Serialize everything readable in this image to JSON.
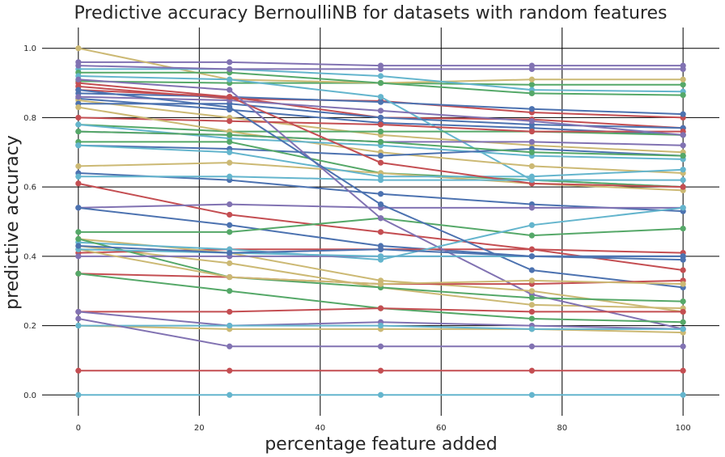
{
  "chart_data": {
    "type": "line",
    "title": "Predictive accuracy BernoulliNB for datasets with random features",
    "xlabel": "percentage feature added",
    "ylabel": "predictive accuracy",
    "x": [
      0,
      25,
      50,
      75,
      100
    ],
    "xlim": [
      -6,
      106
    ],
    "ylim": [
      -0.06,
      1.06
    ],
    "xticks": [
      "0",
      "20",
      "40",
      "60",
      "80",
      "100"
    ],
    "yticks": [
      "0.0",
      "0.2",
      "0.4",
      "0.6",
      "0.8",
      "1.0"
    ],
    "grid": true,
    "legend": "none",
    "colors": {
      "blue": "#4c72b0",
      "green": "#55a868",
      "red": "#c44e52",
      "purple": "#8172b2",
      "yellow": "#ccb974",
      "cyan": "#64b5cd"
    },
    "series": [
      {
        "color": "blue",
        "values": [
          0.855,
          0.823,
          0.785,
          0.77,
          0.75
        ]
      },
      {
        "color": "green",
        "values": [
          0.905,
          0.9,
          0.9,
          0.895,
          0.895
        ]
      },
      {
        "color": "red",
        "values": [
          0.89,
          0.855,
          0.848,
          0.815,
          0.8
        ]
      },
      {
        "color": "purple",
        "values": [
          0.96,
          0.96,
          0.95,
          0.95,
          0.95
        ]
      },
      {
        "color": "yellow",
        "values": [
          1.0,
          0.91,
          0.9,
          0.91,
          0.91
        ]
      },
      {
        "color": "cyan",
        "values": [
          0.94,
          0.94,
          0.92,
          0.88,
          0.875
        ]
      },
      {
        "color": "blue",
        "values": [
          0.87,
          0.86,
          0.845,
          0.825,
          0.81
        ]
      },
      {
        "color": "green",
        "values": [
          0.93,
          0.93,
          0.9,
          0.87,
          0.865
        ]
      },
      {
        "color": "red",
        "values": [
          0.9,
          0.86,
          0.8,
          0.795,
          0.77
        ]
      },
      {
        "color": "purple",
        "values": [
          0.95,
          0.94,
          0.94,
          0.94,
          0.94
        ]
      },
      {
        "color": "yellow",
        "values": [
          0.85,
          0.8,
          0.75,
          0.72,
          0.7
        ]
      },
      {
        "color": "cyan",
        "values": [
          0.92,
          0.91,
          0.86,
          0.62,
          0.6
        ]
      },
      {
        "color": "blue",
        "values": [
          0.84,
          0.84,
          0.8,
          0.78,
          0.77
        ]
      },
      {
        "color": "green",
        "values": [
          0.78,
          0.76,
          0.76,
          0.76,
          0.75
        ]
      },
      {
        "color": "red",
        "values": [
          0.8,
          0.79,
          0.78,
          0.76,
          0.76
        ]
      },
      {
        "color": "purple",
        "values": [
          0.86,
          0.85,
          0.82,
          0.79,
          0.75
        ]
      },
      {
        "color": "yellow",
        "values": [
          0.83,
          0.76,
          0.7,
          0.66,
          0.64
        ]
      },
      {
        "color": "cyan",
        "values": [
          0.78,
          0.74,
          0.72,
          0.69,
          0.68
        ]
      },
      {
        "color": "blue",
        "values": [
          0.72,
          0.71,
          0.69,
          0.71,
          0.69
        ]
      },
      {
        "color": "green",
        "values": [
          0.73,
          0.73,
          0.64,
          0.62,
          0.6
        ]
      },
      {
        "color": "red",
        "values": [
          0.61,
          0.52,
          0.47,
          0.42,
          0.36
        ]
      },
      {
        "color": "purple",
        "values": [
          0.76,
          0.75,
          0.73,
          0.73,
          0.72
        ]
      },
      {
        "color": "yellow",
        "values": [
          0.66,
          0.67,
          0.64,
          0.61,
          0.59
        ]
      },
      {
        "color": "cyan",
        "values": [
          0.72,
          0.7,
          0.63,
          0.63,
          0.65
        ]
      },
      {
        "color": "blue",
        "values": [
          0.64,
          0.62,
          0.58,
          0.55,
          0.53
        ]
      },
      {
        "color": "green",
        "values": [
          0.76,
          0.75,
          0.73,
          0.7,
          0.69
        ]
      },
      {
        "color": "red",
        "values": [
          0.88,
          0.86,
          0.67,
          0.61,
          0.6
        ]
      },
      {
        "color": "purple",
        "values": [
          0.54,
          0.55,
          0.54,
          0.54,
          0.54
        ]
      },
      {
        "color": "yellow",
        "values": [
          0.43,
          0.38,
          0.31,
          0.26,
          0.25
        ]
      },
      {
        "color": "cyan",
        "values": [
          0.63,
          0.63,
          0.62,
          0.62,
          0.62
        ]
      },
      {
        "color": "blue",
        "values": [
          0.54,
          0.49,
          0.43,
          0.4,
          0.39
        ]
      },
      {
        "color": "green",
        "values": [
          0.47,
          0.47,
          0.51,
          0.46,
          0.48
        ]
      },
      {
        "color": "red",
        "values": [
          0.41,
          0.42,
          0.42,
          0.42,
          0.41
        ]
      },
      {
        "color": "purple",
        "values": [
          0.91,
          0.88,
          0.51,
          0.29,
          0.19
        ]
      },
      {
        "color": "yellow",
        "values": [
          0.45,
          0.41,
          0.33,
          0.3,
          0.24
        ]
      },
      {
        "color": "cyan",
        "values": [
          0.44,
          0.42,
          0.39,
          0.49,
          0.54
        ]
      },
      {
        "color": "blue",
        "values": [
          0.88,
          0.83,
          0.55,
          0.36,
          0.31
        ]
      },
      {
        "color": "green",
        "values": [
          0.45,
          0.34,
          0.31,
          0.28,
          0.27
        ]
      },
      {
        "color": "red",
        "values": [
          0.35,
          0.34,
          0.32,
          0.32,
          0.33
        ]
      },
      {
        "color": "purple",
        "values": [
          0.4,
          0.4,
          0.4,
          0.4,
          0.4
        ]
      },
      {
        "color": "yellow",
        "values": [
          0.42,
          0.34,
          0.32,
          0.33,
          0.32
        ]
      },
      {
        "color": "cyan",
        "values": [
          0.42,
          0.41,
          0.4,
          0.4,
          0.4
        ]
      },
      {
        "color": "blue",
        "values": [
          0.43,
          0.41,
          0.42,
          0.4,
          0.4
        ]
      },
      {
        "color": "green",
        "values": [
          0.35,
          0.3,
          0.25,
          0.22,
          0.21
        ]
      },
      {
        "color": "red",
        "values": [
          0.24,
          0.24,
          0.25,
          0.24,
          0.24
        ]
      },
      {
        "color": "purple",
        "values": [
          0.24,
          0.2,
          0.21,
          0.2,
          0.19
        ]
      },
      {
        "color": "yellow",
        "values": [
          0.2,
          0.19,
          0.19,
          0.19,
          0.18
        ]
      },
      {
        "color": "cyan",
        "values": [
          0.2,
          0.2,
          0.2,
          0.19,
          0.19
        ]
      },
      {
        "color": "purple",
        "values": [
          0.22,
          0.14,
          0.14,
          0.14,
          0.14
        ]
      },
      {
        "color": "red",
        "values": [
          0.07,
          0.07,
          0.07,
          0.07,
          0.07
        ]
      },
      {
        "color": "cyan",
        "values": [
          0.0,
          0.0,
          0.0,
          0.0,
          0.0
        ]
      }
    ]
  }
}
